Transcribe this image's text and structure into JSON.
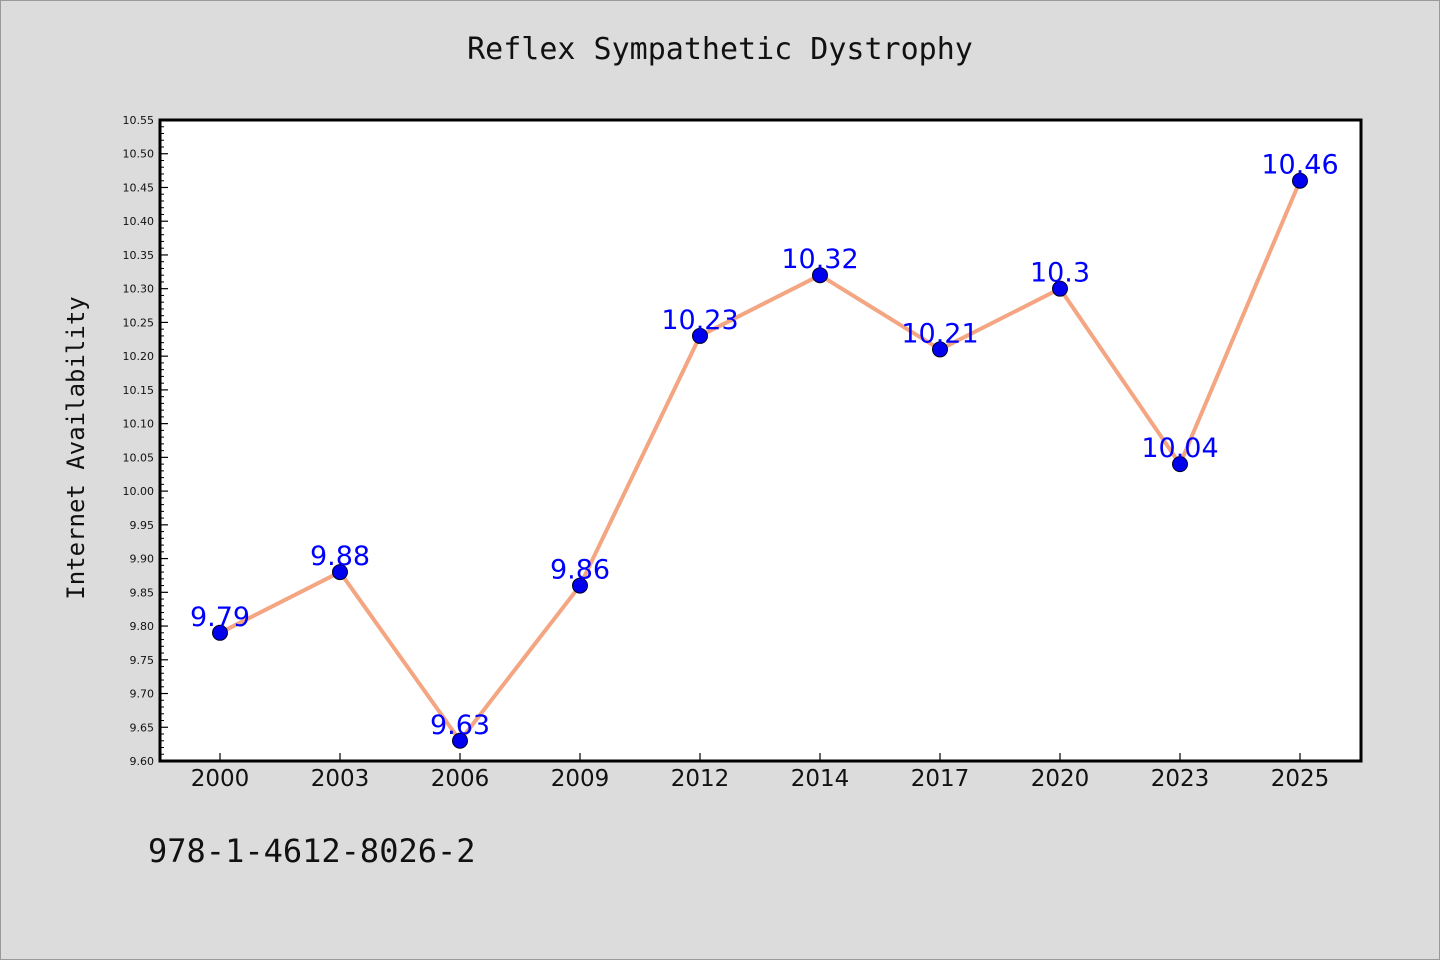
{
  "chart_data": {
    "type": "line",
    "title": "Reflex Sympathetic Dystrophy",
    "xlabel": "",
    "ylabel": "Internet Availability",
    "categories": [
      "2000",
      "2003",
      "2006",
      "2009",
      "2012",
      "2014",
      "2017",
      "2020",
      "2023",
      "2025"
    ],
    "series": [
      {
        "values": [
          9.79,
          9.88,
          9.63,
          9.86,
          10.23,
          10.32,
          10.21,
          10.3,
          10.04,
          10.46
        ],
        "labels": [
          "9.79",
          "9.88",
          "9.63",
          "9.86",
          "10.23",
          "10.32",
          "10.21",
          "10.3",
          "10.04",
          "10.46"
        ],
        "line_color": "#f4a582",
        "marker_color": "#0000ee",
        "label_color": "#0000ff"
      }
    ],
    "ylim": [
      9.6,
      10.55
    ],
    "yticks": [
      "9.60",
      "9.65",
      "9.70",
      "9.75",
      "9.80",
      "9.85",
      "9.90",
      "9.95",
      "10.00",
      "10.05",
      "10.10",
      "10.15",
      "10.20",
      "10.25",
      "10.30",
      "10.35",
      "10.40",
      "10.45",
      "10.50",
      "10.55"
    ],
    "grid": false,
    "legend": "none"
  },
  "footer": {
    "identifier": "978-1-4612-8026-2"
  }
}
